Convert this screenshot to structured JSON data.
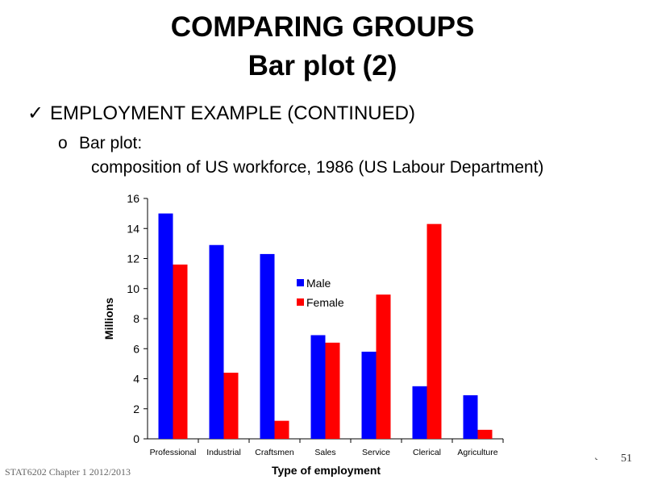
{
  "slide": {
    "title": "COMPARING GROUPS",
    "subtitle": "Bar plot (2)",
    "bullet_check_icon": "checkmark-icon",
    "bullet_main": "EMPLOYMENT EXAMPLE (CONTINUED)",
    "sub_marker": "o",
    "sub_bullet": "Bar plot:",
    "sub_bullet_detail": "composition of US workforce, 1986 (US Labour Department)",
    "footer": "STAT6202 Chapter 1 2012/2013",
    "page_number": "51",
    "nav_glyph": "˞"
  },
  "chart_data": {
    "type": "bar",
    "categories": [
      "Professional",
      "Industrial",
      "Craftsmen",
      "Sales",
      "Service",
      "Clerical",
      "Agriculture"
    ],
    "series": [
      {
        "name": "Male",
        "color": "#0000ff",
        "values": [
          15.0,
          12.9,
          12.3,
          6.9,
          5.8,
          3.5,
          2.9
        ]
      },
      {
        "name": "Female",
        "color": "#ff0000",
        "values": [
          11.6,
          4.4,
          1.2,
          6.4,
          9.6,
          14.3,
          0.6
        ]
      }
    ],
    "xlabel": "Type of employment",
    "ylabel": "Millions",
    "ylim": [
      0,
      16
    ],
    "yticks": [
      "0",
      "2",
      "4",
      "6",
      "8",
      "10",
      "12",
      "14",
      "16"
    ],
    "grid": false,
    "legend_position": "center-right"
  }
}
